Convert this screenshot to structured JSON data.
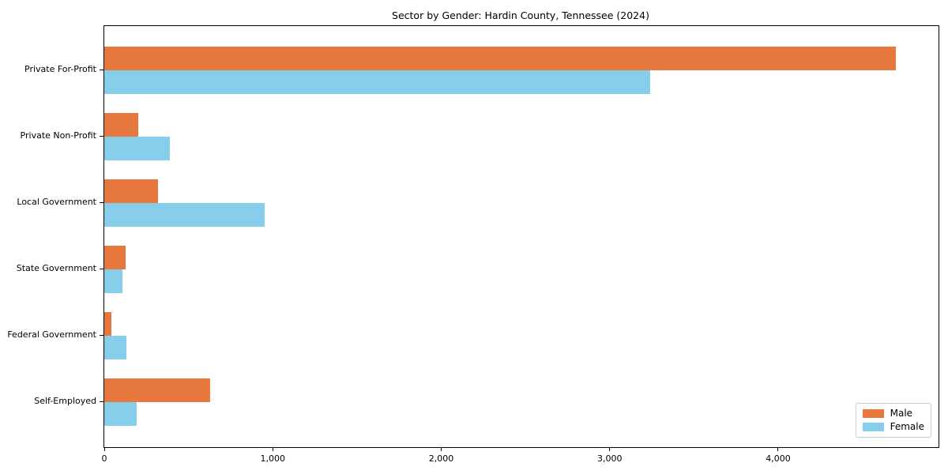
{
  "chart_data": {
    "type": "bar",
    "orientation": "horizontal",
    "title": "Sector by Gender: Hardin County, Tennessee (2024)",
    "categories": [
      "Private For-Profit",
      "Private Non-Profit",
      "Local Government",
      "State Government",
      "Federal Government",
      "Self-Employed"
    ],
    "series": [
      {
        "name": "Male",
        "color": "#e8793e",
        "values": [
          4700,
          200,
          320,
          125,
          40,
          630
        ]
      },
      {
        "name": "Female",
        "color": "#87ceeb",
        "values": [
          3240,
          390,
          950,
          110,
          130,
          190
        ]
      }
    ],
    "xlim": [
      0,
      4952
    ],
    "xticks": [
      0,
      1000,
      2000,
      3000,
      4000
    ],
    "xtick_labels": [
      "0",
      "1,000",
      "2,000",
      "3,000",
      "4,000"
    ],
    "xlabel": "",
    "ylabel": "",
    "grid": false,
    "legend": {
      "position": "lower right",
      "entries": [
        "Male",
        "Female"
      ]
    }
  },
  "colors": {
    "male": "#e8793e",
    "female": "#87ceeb",
    "axis": "#000000",
    "legend_border": "#cccccc",
    "background": "#ffffff"
  }
}
